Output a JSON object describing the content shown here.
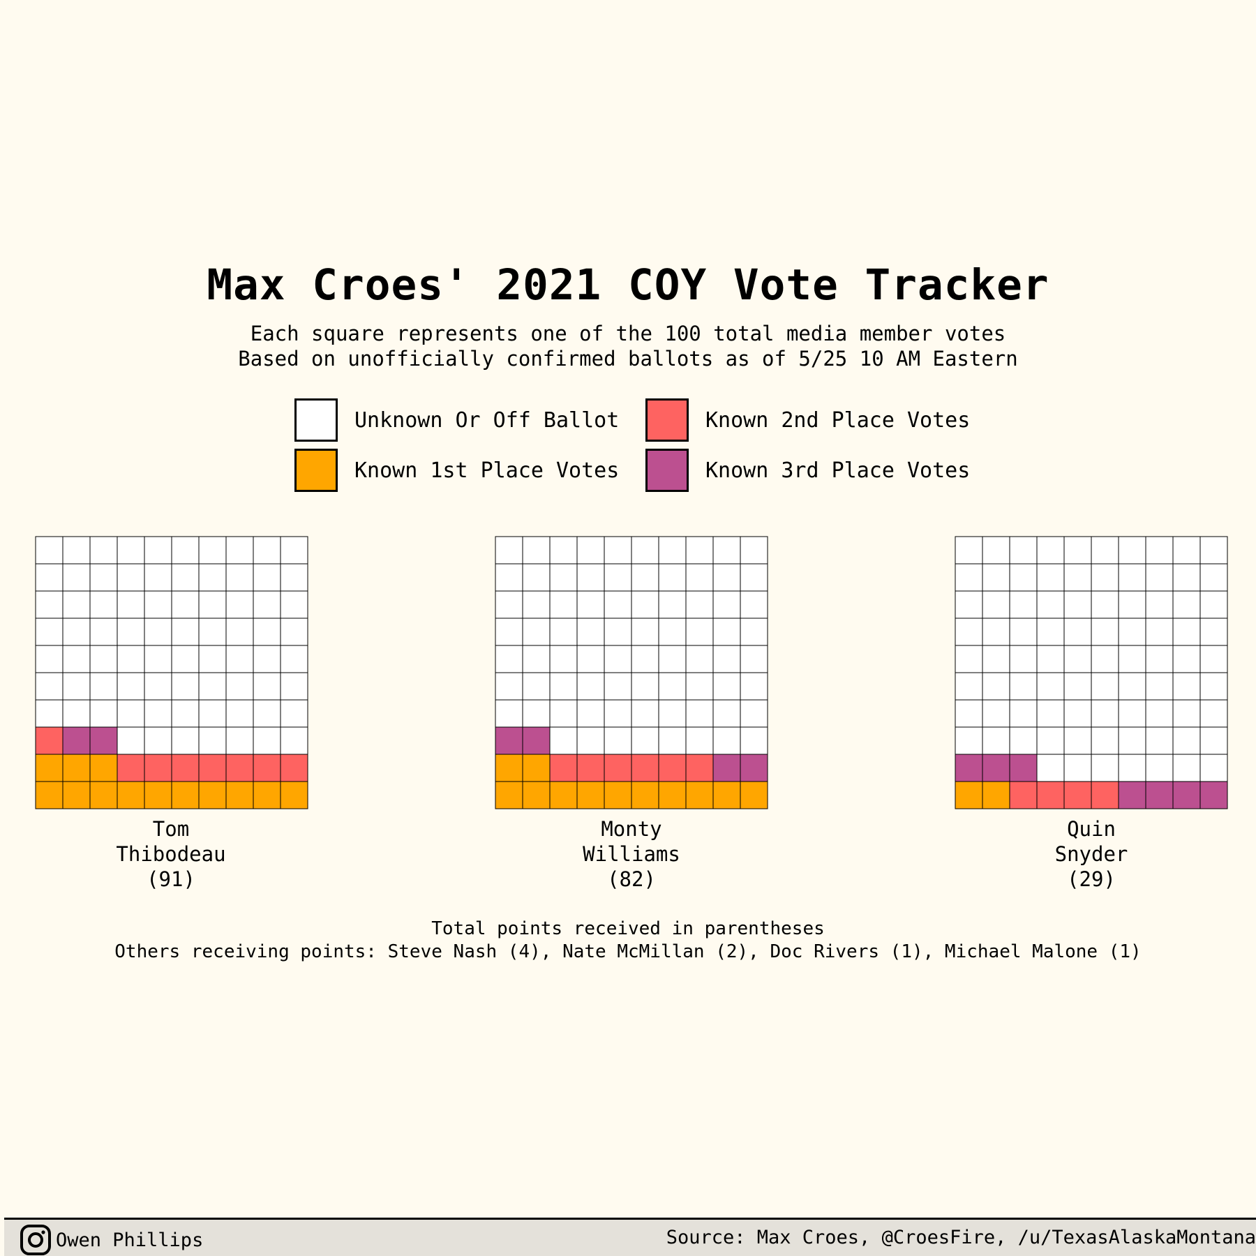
{
  "title": "Max Croes' 2021 COY Vote Tracker",
  "subtitle_line1": "Each square represents one of the 100 total media member votes",
  "subtitle_line2": "Based on unofficially confirmed ballots as of 5/25 10 AM Eastern",
  "legend": [
    {
      "label": "Unknown Or Off Ballot",
      "color": "#ffffff",
      "key": "unknown"
    },
    {
      "label": "Known 2nd Place Votes",
      "color": "#fe6361",
      "key": "second"
    },
    {
      "label": "Known 1st Place Votes",
      "color": "#ffa600",
      "key": "first"
    },
    {
      "label": "Known 3rd Place Votes",
      "color": "#bc5090",
      "key": "third"
    }
  ],
  "chart_data": {
    "type": "waffle",
    "total_squares": 100,
    "grid": "10x10",
    "colors": {
      "first": "#ffa600",
      "second": "#fe6361",
      "third": "#bc5090",
      "unknown": "#ffffff"
    },
    "series": [
      {
        "name_line1": "Tom",
        "name_line2": "Thibodeau",
        "points": "(91)",
        "first": 13,
        "second": 8,
        "third": 2
      },
      {
        "name_line1": "Monty",
        "name_line2": "Williams",
        "points": "(82)",
        "first": 12,
        "second": 6,
        "third": 4
      },
      {
        "name_line1": "Quin",
        "name_line2": "Snyder",
        "points": "(29)",
        "first": 2,
        "second": 4,
        "third": 7
      }
    ]
  },
  "footnote_line1": "Total points received in parentheses",
  "footnote_line2": "Others receiving points: Steve Nash (4), Nate McMillan (2), Doc Rivers (1), Michael Malone (1)",
  "footer": {
    "author": "Owen Phillips",
    "author_icon": "instagram-icon",
    "source": "Source: Max Croes, @CroesFire, /u/TexasAlaskaMontana"
  }
}
